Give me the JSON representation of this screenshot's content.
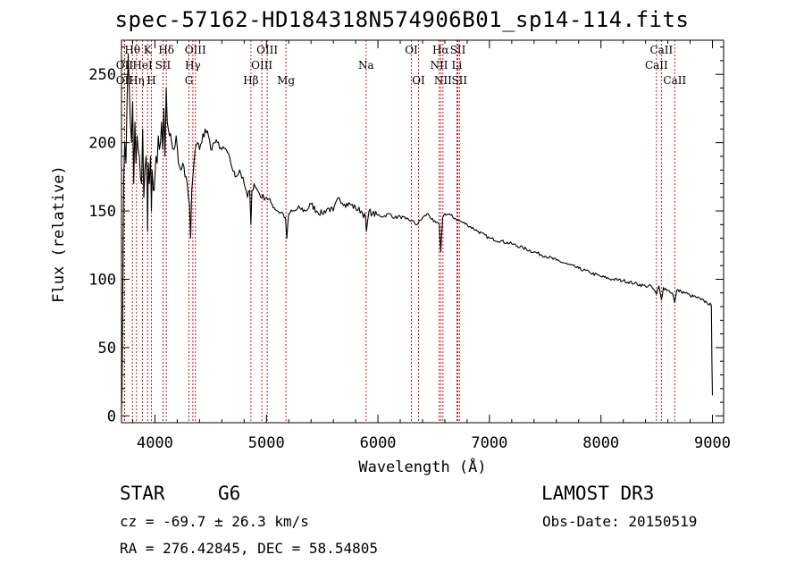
{
  "header": {
    "title": "spec-57162-HD184318N574906B01_sp14-114.fits"
  },
  "footer": {
    "class_label": "STAR",
    "subclass": "G6",
    "survey": "LAMOST DR3",
    "cz": "cz = -69.7 ± 26.3 km/s",
    "obs_date": "Obs-Date: 20150519",
    "coords": "RA = 276.42845, DEC =  58.54805"
  },
  "chart_data": {
    "type": "line",
    "title": "spec-57162-HD184318N574906B01_sp14-114.fits",
    "xlabel": "Wavelength (Å)",
    "ylabel": "Flux (relative)",
    "xlim": [
      3700,
      9100
    ],
    "ylim": [
      -5,
      275
    ],
    "xticks": [
      4000,
      5000,
      6000,
      7000,
      8000,
      9000
    ],
    "yticks": [
      0,
      50,
      100,
      150,
      200,
      250
    ],
    "line_color": "#000000",
    "marker_color": "#cc0000",
    "series": [
      {
        "name": "flux",
        "x": [
          3700,
          3705,
          3710,
          3715,
          3720,
          3730,
          3740,
          3750,
          3760,
          3770,
          3780,
          3790,
          3800,
          3810,
          3820,
          3830,
          3840,
          3850,
          3860,
          3870,
          3880,
          3890,
          3900,
          3910,
          3920,
          3930,
          3934,
          3940,
          3950,
          3960,
          3968,
          3975,
          3985,
          4000,
          4010,
          4020,
          4030,
          4040,
          4050,
          4060,
          4070,
          4080,
          4090,
          4101,
          4110,
          4120,
          4130,
          4150,
          4170,
          4190,
          4210,
          4230,
          4250,
          4270,
          4290,
          4300,
          4310,
          4320,
          4330,
          4340,
          4350,
          4360,
          4380,
          4400,
          4420,
          4450,
          4480,
          4500,
          4530,
          4560,
          4600,
          4640,
          4680,
          4720,
          4760,
          4800,
          4830,
          4850,
          4861,
          4870,
          4890,
          4920,
          4960,
          5000,
          5050,
          5100,
          5150,
          5170,
          5183,
          5200,
          5250,
          5300,
          5350,
          5400,
          5450,
          5500,
          5550,
          5600,
          5650,
          5700,
          5750,
          5800,
          5850,
          5890,
          5896,
          5920,
          5950,
          6000,
          6050,
          6100,
          6150,
          6200,
          6250,
          6300,
          6350,
          6400,
          6450,
          6500,
          6550,
          6563,
          6580,
          6600,
          6650,
          6700,
          6750,
          6800,
          6900,
          7000,
          7100,
          7200,
          7300,
          7400,
          7500,
          7600,
          7700,
          7800,
          7900,
          8000,
          8100,
          8200,
          8300,
          8400,
          8450,
          8498,
          8520,
          8542,
          8560,
          8600,
          8640,
          8662,
          8680,
          8720,
          8760,
          8800,
          8850,
          8900,
          8950,
          8990,
          8995,
          9000
        ],
        "values": [
          2,
          20,
          70,
          130,
          175,
          200,
          185,
          230,
          265,
          240,
          215,
          200,
          230,
          170,
          215,
          185,
          205,
          195,
          190,
          175,
          170,
          210,
          160,
          180,
          190,
          170,
          135,
          185,
          170,
          190,
          150,
          180,
          165,
          175,
          190,
          185,
          205,
          195,
          200,
          215,
          195,
          225,
          190,
          240,
          215,
          210,
          205,
          200,
          195,
          205,
          185,
          180,
          185,
          175,
          170,
          160,
          155,
          130,
          165,
          175,
          185,
          195,
          200,
          195,
          200,
          210,
          205,
          195,
          200,
          200,
          195,
          195,
          185,
          175,
          180,
          170,
          160,
          165,
          140,
          165,
          170,
          165,
          160,
          160,
          155,
          150,
          148,
          145,
          130,
          148,
          150,
          152,
          150,
          155,
          150,
          148,
          152,
          150,
          160,
          155,
          155,
          152,
          150,
          145,
          135,
          150,
          148,
          147,
          146,
          148,
          145,
          146,
          144,
          143,
          140,
          145,
          148,
          142,
          140,
          120,
          145,
          148,
          147,
          144,
          142,
          140,
          135,
          130,
          128,
          126,
          123,
          120,
          117,
          114,
          111,
          108,
          105,
          102,
          100,
          99,
          97,
          95,
          95,
          89,
          95,
          85,
          94,
          92,
          90,
          83,
          92,
          91,
          90,
          88,
          87,
          85,
          83,
          81,
          40,
          15
        ]
      }
    ],
    "spectral_lines": [
      {
        "label": "Hθ",
        "wave": 3798,
        "row": 0
      },
      {
        "label": "OII",
        "wave": 3727,
        "row": 1
      },
      {
        "label": "OII",
        "wave": 3727,
        "row": 2
      },
      {
        "label": "Hη",
        "wave": 3835,
        "row": 2
      },
      {
        "label": "HeI",
        "wave": 3889,
        "row": 1
      },
      {
        "label": "K",
        "wave": 3934,
        "row": 0
      },
      {
        "label": "H",
        "wave": 3968,
        "row": 2
      },
      {
        "label": "SII",
        "wave": 4072,
        "row": 1
      },
      {
        "label": "Hδ",
        "wave": 4102,
        "row": 0
      },
      {
        "label": "G",
        "wave": 4305,
        "row": 2
      },
      {
        "label": "Hγ",
        "wave": 4340,
        "row": 1
      },
      {
        "label": "OIII",
        "wave": 4363,
        "row": 0
      },
      {
        "label": "Hβ",
        "wave": 4861,
        "row": 2
      },
      {
        "label": "OIII",
        "wave": 4959,
        "row": 1
      },
      {
        "label": "OIII",
        "wave": 5007,
        "row": 0
      },
      {
        "label": "Mg",
        "wave": 5175,
        "row": 2
      },
      {
        "label": "Na",
        "wave": 5894,
        "row": 1
      },
      {
        "label": "OI",
        "wave": 6300,
        "row": 0
      },
      {
        "label": "OI",
        "wave": 6364,
        "row": 2
      },
      {
        "label": "NII",
        "wave": 6548,
        "row": 1
      },
      {
        "label": "Hα",
        "wave": 6563,
        "row": 0
      },
      {
        "label": "NII",
        "wave": 6583,
        "row": 2
      },
      {
        "label": "Li",
        "wave": 6708,
        "row": 1
      },
      {
        "label": "SII",
        "wave": 6717,
        "row": 0
      },
      {
        "label": "SII",
        "wave": 6731,
        "row": 2
      },
      {
        "label": "CaII",
        "wave": 8498,
        "row": 1
      },
      {
        "label": "CaII",
        "wave": 8542,
        "row": 0
      },
      {
        "label": "CaII",
        "wave": 8662,
        "row": 2
      }
    ]
  }
}
